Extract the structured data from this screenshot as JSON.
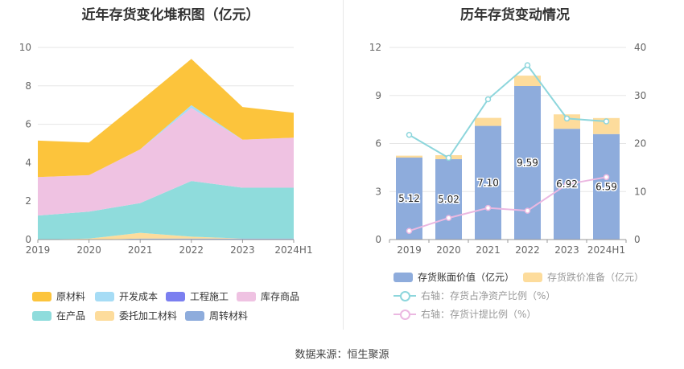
{
  "source": "数据来源：恒生聚源",
  "chart_data": [
    {
      "type": "area",
      "stacked": true,
      "title": "近年存货变化堆积图（亿元）",
      "categories": [
        "2019",
        "2020",
        "2021",
        "2022",
        "2023",
        "2024H1"
      ],
      "ylim": [
        0,
        10
      ],
      "yticks": [
        0,
        2,
        4,
        6,
        8,
        10
      ],
      "series": [
        {
          "name": "原材料",
          "color": "#fcc43c",
          "values": [
            1.9,
            1.7,
            2.5,
            2.4,
            1.7,
            1.3
          ]
        },
        {
          "name": "开发成本",
          "color": "#a6dcf5",
          "values": [
            0,
            0,
            0,
            0.15,
            0,
            0
          ]
        },
        {
          "name": "工程施工",
          "color": "#7b7ff0",
          "values": [
            0,
            0,
            0,
            0,
            0,
            0
          ]
        },
        {
          "name": "库存商品",
          "color": "#efc2e2",
          "values": [
            2.0,
            1.9,
            2.8,
            3.8,
            2.5,
            2.6
          ]
        },
        {
          "name": "在产品",
          "color": "#8fdcdc",
          "values": [
            1.25,
            1.4,
            1.55,
            2.9,
            2.65,
            2.65
          ]
        },
        {
          "name": "委托加工材料",
          "color": "#fddc9c",
          "values": [
            0,
            0.05,
            0.3,
            0.1,
            0,
            0
          ]
        },
        {
          "name": "周转材料",
          "color": "#8eacdc",
          "values": [
            0,
            0,
            0.05,
            0.05,
            0.05,
            0.05
          ]
        }
      ],
      "legend_order": [
        "原材料",
        "开发成本",
        "工程施工",
        "库存商品",
        "在产品",
        "委托加工材料",
        "周转材料"
      ]
    },
    {
      "type": "bar",
      "title": "历年存货变动情况",
      "categories": [
        "2019",
        "2020",
        "2021",
        "2022",
        "2023",
        "2024H1"
      ],
      "y_left": {
        "ylim": [
          0,
          12
        ],
        "ticks": [
          0,
          3,
          6,
          9,
          12
        ]
      },
      "y_right": {
        "ylim": [
          0,
          40
        ],
        "ticks": [
          0,
          10,
          20,
          30,
          40
        ]
      },
      "bars": [
        {
          "name": "存货账面价值（亿元）",
          "color": "#8eacdc",
          "values": [
            5.12,
            5.02,
            7.1,
            9.59,
            6.92,
            6.59
          ],
          "labels": [
            "5.12",
            "5.02",
            "7.10",
            "9.59",
            "6.92",
            "6.59"
          ]
        },
        {
          "name": "存货跌价准备（亿元）",
          "color": "#fddc9c",
          "values": [
            0.12,
            0.25,
            0.5,
            0.65,
            0.9,
            1.0
          ]
        }
      ],
      "lines": [
        {
          "name": "右轴：存货占净资产比例（%）",
          "color": "#8dd6dc",
          "values": [
            21.8,
            17.0,
            29.2,
            36.3,
            25.2,
            24.6
          ]
        },
        {
          "name": "右轴：存货计提比例（%）",
          "color": "#ebb8e1",
          "values": [
            1.8,
            4.5,
            6.6,
            6.0,
            11.5,
            13.0
          ]
        }
      ]
    }
  ]
}
